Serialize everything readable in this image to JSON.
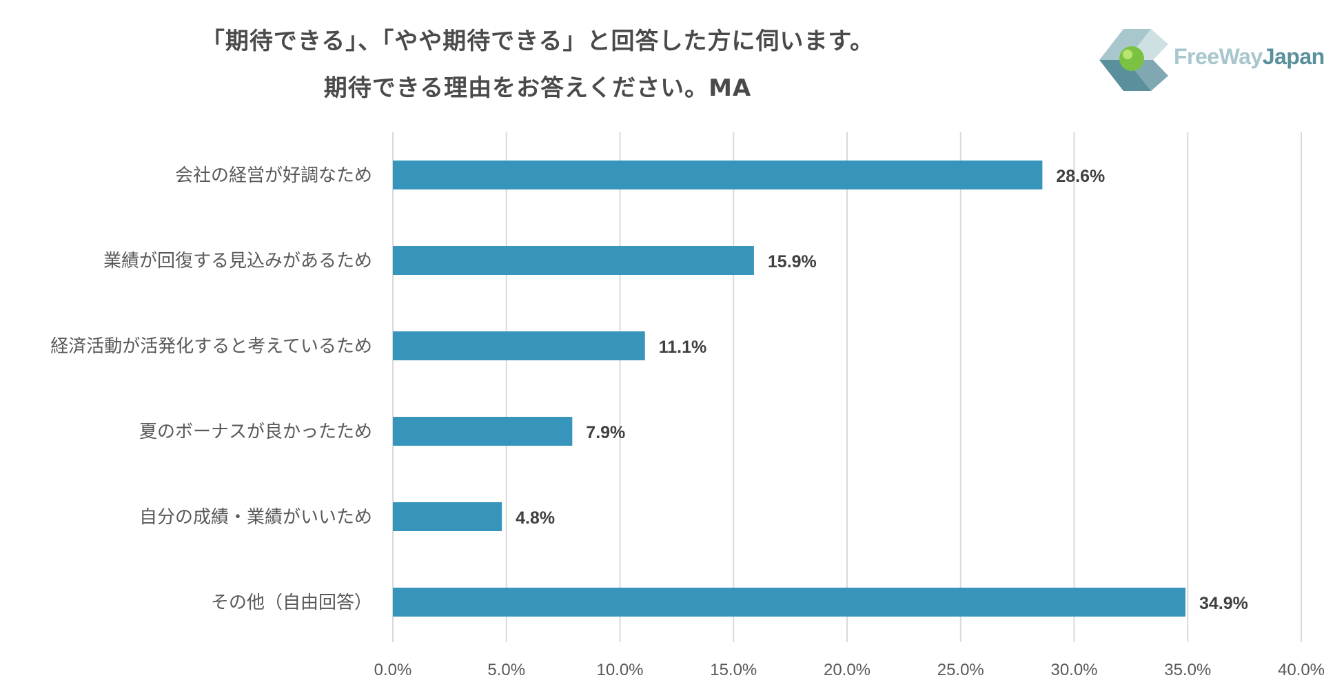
{
  "title": {
    "line1": "「期待できる」、「やや期待できる」と回答した方に伺います。",
    "line2": "期待できる理由をお答えください。MA"
  },
  "logo": {
    "text_part1": "FreeWay",
    "text_part2": "Japan",
    "colors": {
      "light": "#a7c7cc",
      "dark": "#5a8f9c",
      "ball": "#7cc242"
    }
  },
  "chart_data": {
    "type": "bar",
    "orientation": "horizontal",
    "categories": [
      "会社の経営が好調なため",
      "業績が回復する見込みがあるため",
      "経済活動が活発化すると考えているため",
      "夏のボーナスが良かったため",
      "自分の成績・業績がいいため",
      "その他（自由回答）"
    ],
    "values": [
      28.6,
      15.9,
      11.1,
      7.9,
      4.8,
      34.9
    ],
    "value_labels": [
      "28.6%",
      "15.9%",
      "11.1%",
      "7.9%",
      "4.8%",
      "34.9%"
    ],
    "xlim": [
      0,
      40
    ],
    "xticks": [
      0,
      5,
      10,
      15,
      20,
      25,
      30,
      35,
      40
    ],
    "xtick_labels": [
      "0.0%",
      "5.0%",
      "10.0%",
      "15.0%",
      "20.0%",
      "25.0%",
      "30.0%",
      "35.0%",
      "40.0%"
    ],
    "grid": "vertical",
    "bar_color": "#3795bb",
    "grid_color": "#d9d9d9"
  }
}
